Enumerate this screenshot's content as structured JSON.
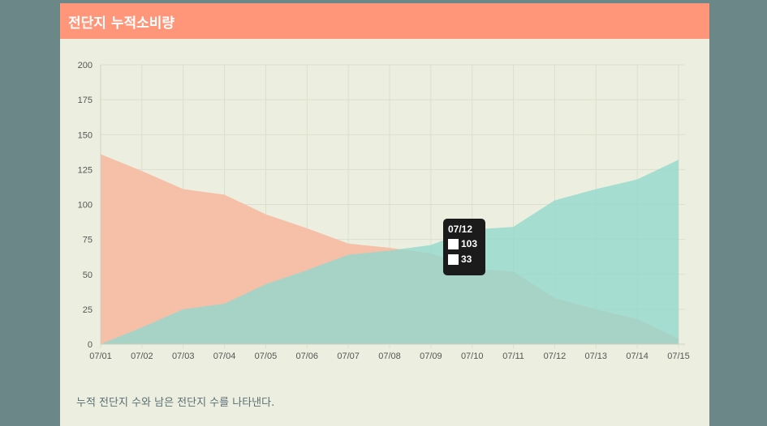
{
  "header": {
    "title": "전단지 누적소비량"
  },
  "caption": "누적 전단지 수와 남은 전단지 수를 나타낸다.",
  "colors": {
    "background": "#6b8787",
    "panel": "#ecefdf",
    "header": "#ff967a",
    "series_remaining": "#f5bfa8",
    "series_cumulative": "#93d8cd",
    "overlap": "#c9b8a8"
  },
  "tooltip": {
    "label": "07/12",
    "values": [
      "103",
      "33"
    ]
  },
  "chart_data": {
    "type": "area",
    "title": "",
    "xlabel": "",
    "ylabel": "",
    "ylim": [
      0,
      200
    ],
    "yticks": [
      0,
      25,
      50,
      75,
      100,
      125,
      150,
      175,
      200
    ],
    "grid": true,
    "legend": "none",
    "x": [
      "07/01",
      "07/02",
      "07/03",
      "07/04",
      "07/05",
      "07/06",
      "07/07",
      "07/08",
      "07/09",
      "07/10",
      "07/11",
      "07/12",
      "07/13",
      "07/14",
      "07/15"
    ],
    "series": [
      {
        "values": [
          136,
          124,
          111,
          107,
          93,
          83,
          72,
          69,
          65,
          54,
          52,
          33,
          25,
          18,
          4
        ],
        "color": "#f5bfa8"
      },
      {
        "values": [
          0,
          12,
          25,
          29,
          43,
          53,
          64,
          67,
          71,
          82,
          84,
          103,
          111,
          118,
          132
        ],
        "color": "#93d8cd"
      }
    ]
  }
}
